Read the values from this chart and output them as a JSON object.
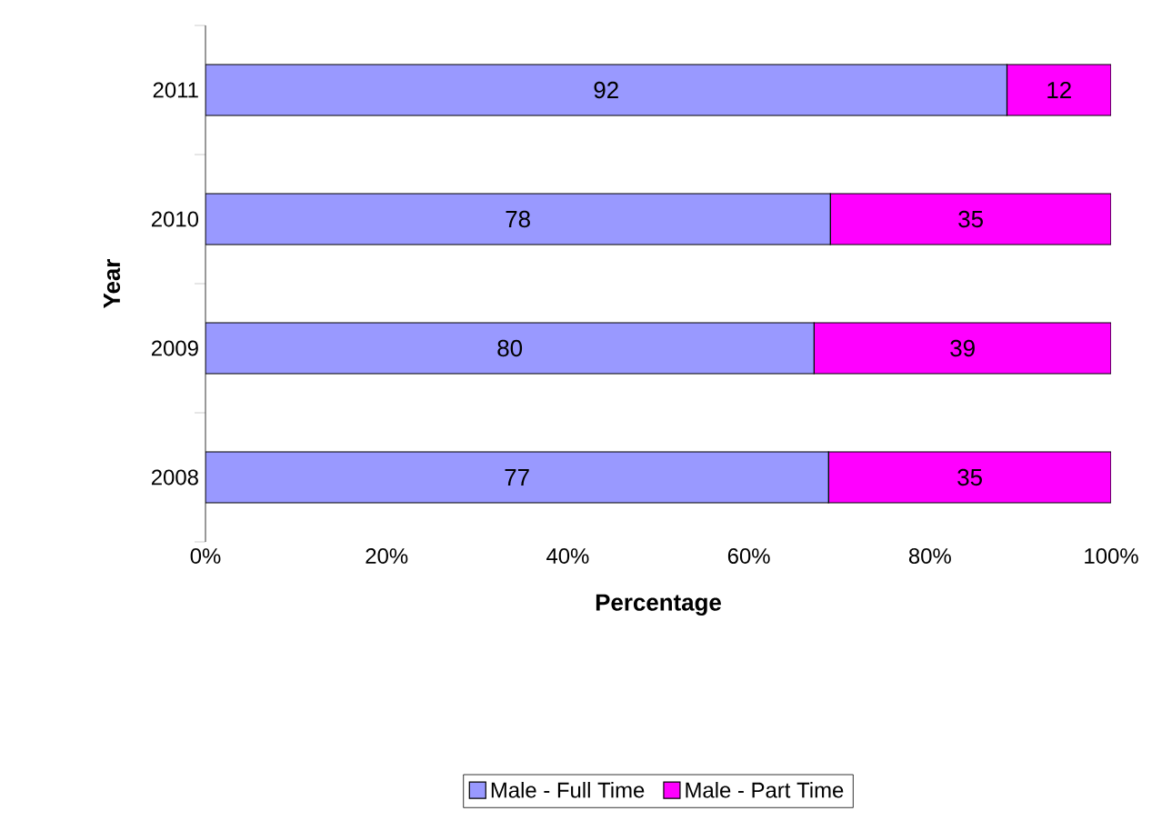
{
  "chart_data": {
    "type": "bar",
    "orientation": "horizontal",
    "stacked": true,
    "xlabel": "Percentage",
    "ylabel": "Year",
    "categories": [
      "2011",
      "2010",
      "2009",
      "2008"
    ],
    "series": [
      {
        "name": "Male - Full Time",
        "color": "#9999ff",
        "values": [
          88.5,
          69.0,
          67.2,
          68.8
        ]
      },
      {
        "name": "Male - Part Time",
        "color": "#ff00ff",
        "values": [
          11.5,
          31.0,
          32.8,
          31.2
        ]
      }
    ],
    "annotations": [
      "92",
      "78",
      "80",
      "77",
      "12",
      "35",
      "39",
      "35"
    ],
    "xlim": [
      0,
      100
    ],
    "xticks": [
      {
        "value": 0,
        "label": "0%"
      },
      {
        "value": 20,
        "label": "20%"
      },
      {
        "value": 40,
        "label": "40%"
      },
      {
        "value": 60,
        "label": "60%"
      },
      {
        "value": 80,
        "label": "80%"
      },
      {
        "value": 100,
        "label": "100%"
      }
    ],
    "legend": "bottom"
  }
}
